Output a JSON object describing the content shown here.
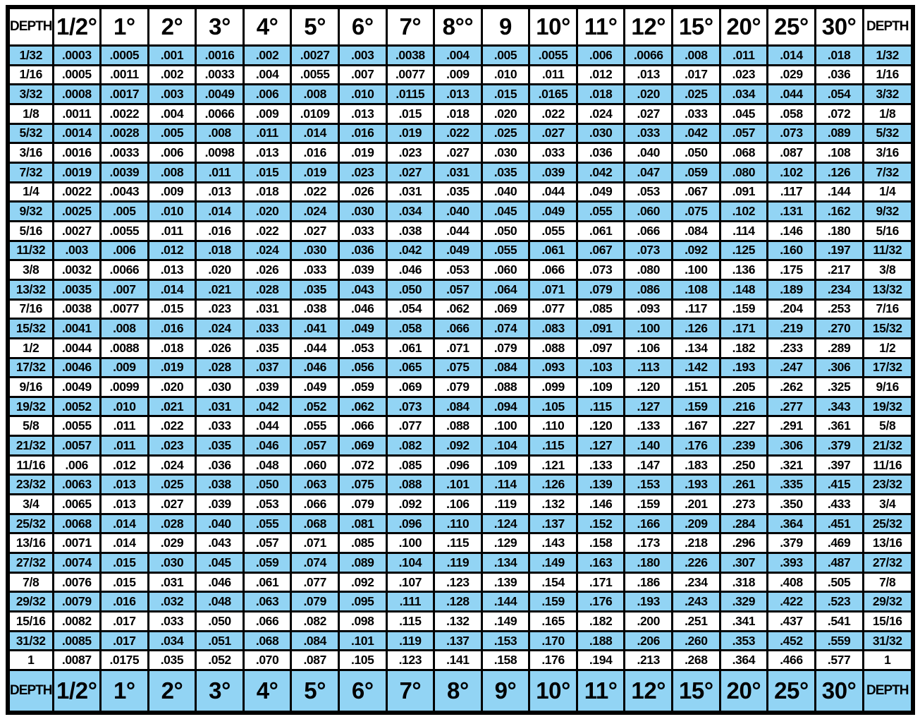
{
  "colors": {
    "stripe_blue": "#92d4f4",
    "grid_black": "#000000",
    "top_header_bg": "#ffffff",
    "bottom_header_bg": "#92d4f4",
    "text": "#000000",
    "page_bg": "#ffffff"
  },
  "table": {
    "top_headers": [
      "DEPTH",
      "1/2°",
      "1°",
      "2°",
      "3°",
      "4°",
      "5°",
      "6°",
      "7°",
      "8°°",
      "9",
      "10°",
      "11°",
      "12°",
      "15°",
      "20°",
      "25°",
      "30°",
      "DEPTH"
    ],
    "bottom_headers": [
      "DEPTH",
      "1/2°",
      "1°",
      "2°",
      "3°",
      "4°",
      "5°",
      "6°",
      "7°",
      "8°",
      "9°",
      "10°",
      "11°",
      "12°",
      "15°",
      "20°",
      "25°",
      "30°",
      "DEPTH"
    ],
    "rows": [
      {
        "depth": "1/32",
        "values": [
          ".0003",
          ".0005",
          ".001",
          ".0016",
          ".002",
          ".0027",
          ".003",
          ".0038",
          ".004",
          ".005",
          ".0055",
          ".006",
          ".0066",
          ".008",
          ".011",
          ".014",
          ".018"
        ]
      },
      {
        "depth": "1/16",
        "values": [
          ".0005",
          ".0011",
          ".002",
          ".0033",
          ".004",
          ".0055",
          ".007",
          ".0077",
          ".009",
          ".010",
          ".011",
          ".012",
          ".013",
          ".017",
          ".023",
          ".029",
          ".036"
        ]
      },
      {
        "depth": "3/32",
        "values": [
          ".0008",
          ".0017",
          ".003",
          ".0049",
          ".006",
          ".008",
          ".010",
          ".0115",
          ".013",
          ".015",
          ".0165",
          ".018",
          ".020",
          ".025",
          ".034",
          ".044",
          ".054"
        ]
      },
      {
        "depth": "1/8",
        "values": [
          ".0011",
          ".0022",
          ".004",
          ".0066",
          ".009",
          ".0109",
          ".013",
          ".015",
          ".018",
          ".020",
          ".022",
          ".024",
          ".027",
          ".033",
          ".045",
          ".058",
          ".072"
        ]
      },
      {
        "depth": "5/32",
        "values": [
          ".0014",
          ".0028",
          ".005",
          ".008",
          ".011",
          ".014",
          ".016",
          ".019",
          ".022",
          ".025",
          ".027",
          ".030",
          ".033",
          ".042",
          ".057",
          ".073",
          ".089"
        ]
      },
      {
        "depth": "3/16",
        "values": [
          ".0016",
          ".0033",
          ".006",
          ".0098",
          ".013",
          ".016",
          ".019",
          ".023",
          ".027",
          ".030",
          ".033",
          ".036",
          ".040",
          ".050",
          ".068",
          ".087",
          ".108"
        ]
      },
      {
        "depth": "7/32",
        "values": [
          ".0019",
          ".0039",
          ".008",
          ".011",
          ".015",
          ".019",
          ".023",
          ".027",
          ".031",
          ".035",
          ".039",
          ".042",
          ".047",
          ".059",
          ".080",
          ".102",
          ".126"
        ]
      },
      {
        "depth": "1/4",
        "values": [
          ".0022",
          ".0043",
          ".009",
          ".013",
          ".018",
          ".022",
          ".026",
          ".031",
          ".035",
          ".040",
          ".044",
          ".049",
          ".053",
          ".067",
          ".091",
          ".117",
          ".144"
        ]
      },
      {
        "depth": "9/32",
        "values": [
          ".0025",
          ".005",
          ".010",
          ".014",
          ".020",
          ".024",
          ".030",
          ".034",
          ".040",
          ".045",
          ".049",
          ".055",
          ".060",
          ".075",
          ".102",
          ".131",
          ".162"
        ]
      },
      {
        "depth": "5/16",
        "values": [
          ".0027",
          ".0055",
          ".011",
          ".016",
          ".022",
          ".027",
          ".033",
          ".038",
          ".044",
          ".050",
          ".055",
          ".061",
          ".066",
          ".084",
          ".114",
          ".146",
          ".180"
        ]
      },
      {
        "depth": "11/32",
        "values": [
          ".003",
          ".006",
          ".012",
          ".018",
          ".024",
          ".030",
          ".036",
          ".042",
          ".049",
          ".055",
          ".061",
          ".067",
          ".073",
          ".092",
          ".125",
          ".160",
          ".197"
        ]
      },
      {
        "depth": "3/8",
        "values": [
          ".0032",
          ".0066",
          ".013",
          ".020",
          ".026",
          ".033",
          ".039",
          ".046",
          ".053",
          ".060",
          ".066",
          ".073",
          ".080",
          ".100",
          ".136",
          ".175",
          ".217"
        ]
      },
      {
        "depth": "13/32",
        "values": [
          ".0035",
          ".007",
          ".014",
          ".021",
          ".028",
          ".035",
          ".043",
          ".050",
          ".057",
          ".064",
          ".071",
          ".079",
          ".086",
          ".108",
          ".148",
          ".189",
          ".234"
        ]
      },
      {
        "depth": "7/16",
        "values": [
          ".0038",
          ".0077",
          ".015",
          ".023",
          ".031",
          ".038",
          ".046",
          ".054",
          ".062",
          ".069",
          ".077",
          ".085",
          ".093",
          ".117",
          ".159",
          ".204",
          ".253"
        ]
      },
      {
        "depth": "15/32",
        "values": [
          ".0041",
          ".008",
          ".016",
          ".024",
          ".033",
          ".041",
          ".049",
          ".058",
          ".066",
          ".074",
          ".083",
          ".091",
          ".100",
          ".126",
          ".171",
          ".219",
          ".270"
        ]
      },
      {
        "depth": "1/2",
        "values": [
          ".0044",
          ".0088",
          ".018",
          ".026",
          ".035",
          ".044",
          ".053",
          ".061",
          ".071",
          ".079",
          ".088",
          ".097",
          ".106",
          ".134",
          ".182",
          ".233",
          ".289"
        ]
      },
      {
        "depth": "17/32",
        "values": [
          ".0046",
          ".009",
          ".019",
          ".028",
          ".037",
          ".046",
          ".056",
          ".065",
          ".075",
          ".084",
          ".093",
          ".103",
          ".113",
          ".142",
          ".193",
          ".247",
          ".306"
        ]
      },
      {
        "depth": "9/16",
        "values": [
          ".0049",
          ".0099",
          ".020",
          ".030",
          ".039",
          ".049",
          ".059",
          ".069",
          ".079",
          ".088",
          ".099",
          ".109",
          ".120",
          ".151",
          ".205",
          ".262",
          ".325"
        ]
      },
      {
        "depth": "19/32",
        "values": [
          ".0052",
          ".010",
          ".021",
          ".031",
          ".042",
          ".052",
          ".062",
          ".073",
          ".084",
          ".094",
          ".105",
          ".115",
          ".127",
          ".159",
          ".216",
          ".277",
          ".343"
        ]
      },
      {
        "depth": "5/8",
        "values": [
          ".0055",
          ".011",
          ".022",
          ".033",
          ".044",
          ".055",
          ".066",
          ".077",
          ".088",
          ".100",
          ".110",
          ".120",
          ".133",
          ".167",
          ".227",
          ".291",
          ".361"
        ]
      },
      {
        "depth": "21/32",
        "values": [
          ".0057",
          ".011",
          ".023",
          ".035",
          ".046",
          ".057",
          ".069",
          ".082",
          ".092",
          ".104",
          ".115",
          ".127",
          ".140",
          ".176",
          ".239",
          ".306",
          ".379"
        ]
      },
      {
        "depth": "11/16",
        "values": [
          ".006",
          ".012",
          ".024",
          ".036",
          ".048",
          ".060",
          ".072",
          ".085",
          ".096",
          ".109",
          ".121",
          ".133",
          ".147",
          ".183",
          ".250",
          ".321",
          ".397"
        ]
      },
      {
        "depth": "23/32",
        "values": [
          ".0063",
          ".013",
          ".025",
          ".038",
          ".050",
          ".063",
          ".075",
          ".088",
          ".101",
          ".114",
          ".126",
          ".139",
          ".153",
          ".193",
          ".261",
          ".335",
          ".415"
        ]
      },
      {
        "depth": "3/4",
        "values": [
          ".0065",
          ".013",
          ".027",
          ".039",
          ".053",
          ".066",
          ".079",
          ".092",
          ".106",
          ".119",
          ".132",
          ".146",
          ".159",
          ".201",
          ".273",
          ".350",
          ".433"
        ]
      },
      {
        "depth": "25/32",
        "values": [
          ".0068",
          ".014",
          ".028",
          ".040",
          ".055",
          ".068",
          ".081",
          ".096",
          ".110",
          ".124",
          ".137",
          ".152",
          ".166",
          ".209",
          ".284",
          ".364",
          ".451"
        ]
      },
      {
        "depth": "13/16",
        "values": [
          ".0071",
          ".014",
          ".029",
          ".043",
          ".057",
          ".071",
          ".085",
          ".100",
          ".115",
          ".129",
          ".143",
          ".158",
          ".173",
          ".218",
          ".296",
          ".379",
          ".469"
        ]
      },
      {
        "depth": "27/32",
        "values": [
          ".0074",
          ".015",
          ".030",
          ".045",
          ".059",
          ".074",
          ".089",
          ".104",
          ".119",
          ".134",
          ".149",
          ".163",
          ".180",
          ".226",
          ".307",
          ".393",
          ".487"
        ]
      },
      {
        "depth": "7/8",
        "values": [
          ".0076",
          ".015",
          ".031",
          ".046",
          ".061",
          ".077",
          ".092",
          ".107",
          ".123",
          ".139",
          ".154",
          ".171",
          ".186",
          ".234",
          ".318",
          ".408",
          ".505"
        ]
      },
      {
        "depth": "29/32",
        "values": [
          ".0079",
          ".016",
          ".032",
          ".048",
          ".063",
          ".079",
          ".095",
          ".111",
          ".128",
          ".144",
          ".159",
          ".176",
          ".193",
          ".243",
          ".329",
          ".422",
          ".523"
        ]
      },
      {
        "depth": "15/16",
        "values": [
          ".0082",
          ".017",
          ".033",
          ".050",
          ".066",
          ".082",
          ".098",
          ".115",
          ".132",
          ".149",
          ".165",
          ".182",
          ".200",
          ".251",
          ".341",
          ".437",
          ".541"
        ]
      },
      {
        "depth": "31/32",
        "values": [
          ".0085",
          ".017",
          ".034",
          ".051",
          ".068",
          ".084",
          ".101",
          ".119",
          ".137",
          ".153",
          ".170",
          ".188",
          ".206",
          ".260",
          ".353",
          ".452",
          ".559"
        ]
      },
      {
        "depth": "1",
        "values": [
          ".0087",
          ".0175",
          ".035",
          ".052",
          ".070",
          ".087",
          ".105",
          ".123",
          ".141",
          ".158",
          ".176",
          ".194",
          ".213",
          ".268",
          ".364",
          ".466",
          ".577"
        ]
      }
    ]
  }
}
